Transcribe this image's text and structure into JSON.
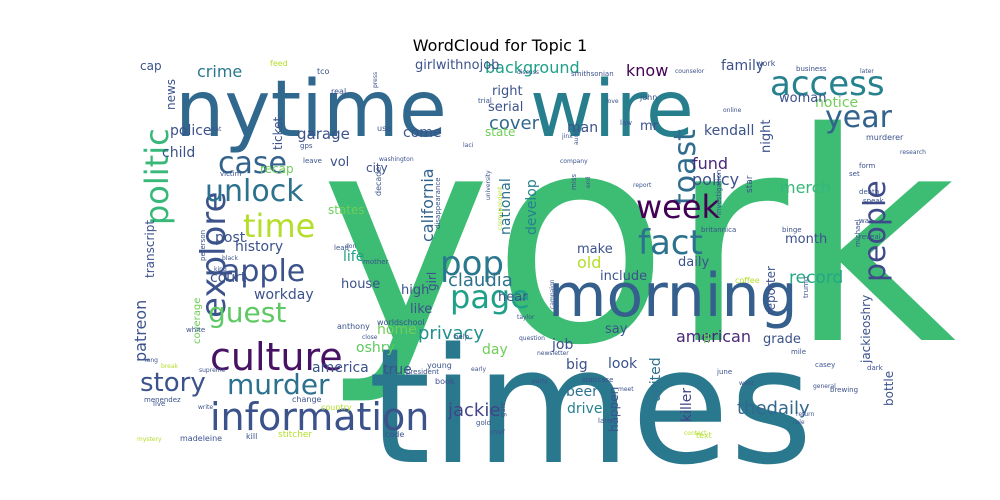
{
  "chart_data": {
    "type": "wordcloud",
    "title": "WordCloud for Topic 1",
    "palette": "viridis",
    "words": [
      {
        "text": "york",
        "weight": 100,
        "color": "#3dbc74"
      },
      {
        "text": "times",
        "weight": 92,
        "color": "#2a788e"
      },
      {
        "text": "nytime",
        "weight": 62,
        "color": "#31688e"
      },
      {
        "text": "wire",
        "weight": 62,
        "color": "#277f8e"
      },
      {
        "text": "morning",
        "weight": 52,
        "color": "#355f8d"
      },
      {
        "text": "access",
        "weight": 33,
        "color": "#26828e"
      },
      {
        "text": "culture",
        "weight": 34,
        "color": "#471164"
      },
      {
        "text": "information",
        "weight": 34,
        "color": "#3b528b"
      },
      {
        "text": "page",
        "weight": 30,
        "color": "#1fa088"
      },
      {
        "text": "politic",
        "weight": 30,
        "color": "#37b878"
      },
      {
        "text": "explore",
        "weight": 30,
        "color": "#3b528b"
      },
      {
        "text": "fact",
        "weight": 30,
        "color": "#2c728e"
      },
      {
        "text": "pop",
        "weight": 28,
        "color": "#2a788e"
      },
      {
        "text": "people",
        "weight": 28,
        "color": "#3e4a89"
      },
      {
        "text": "year",
        "weight": 28,
        "color": "#33638d"
      },
      {
        "text": "apple",
        "weight": 28,
        "color": "#3b528b"
      },
      {
        "text": "toast",
        "weight": 28,
        "color": "#2f6c8e"
      },
      {
        "text": "week",
        "weight": 27,
        "color": "#440154"
      },
      {
        "text": "case",
        "weight": 28,
        "color": "#33638d"
      },
      {
        "text": "unlock",
        "weight": 27,
        "color": "#2c728e"
      },
      {
        "text": "guest",
        "weight": 28,
        "color": "#5ec962"
      },
      {
        "text": "story",
        "weight": 26,
        "color": "#3b528b"
      },
      {
        "text": "murder",
        "weight": 26,
        "color": "#2c728e"
      },
      {
        "text": "time",
        "weight": 26,
        "color": "#b5de2b"
      },
      {
        "text": "claudia",
        "weight": 15,
        "color": "#2c728e"
      },
      {
        "text": "privacy",
        "weight": 15,
        "color": "#21918c"
      },
      {
        "text": "thedaily",
        "weight": 15,
        "color": "#31688e"
      },
      {
        "text": "jackie",
        "weight": 15,
        "color": "#414487"
      },
      {
        "text": "background",
        "weight": 13,
        "color": "#1fa088"
      },
      {
        "text": "record",
        "weight": 13,
        "color": "#22a884"
      },
      {
        "text": "american",
        "weight": 13,
        "color": "#482878"
      },
      {
        "text": "merch",
        "weight": 13,
        "color": "#35b779"
      },
      {
        "text": "policy",
        "weight": 13,
        "color": "#3b528b"
      },
      {
        "text": "crime",
        "weight": 13,
        "color": "#2a788e"
      },
      {
        "text": "patreon",
        "weight": 13,
        "color": "#3b528b"
      },
      {
        "text": "know",
        "weight": 13,
        "color": "#440154"
      },
      {
        "text": "cover",
        "weight": 13,
        "color": "#31688e"
      },
      {
        "text": "notice",
        "weight": 12,
        "color": "#6ece58"
      },
      {
        "text": "garage",
        "weight": 12,
        "color": "#3b528b"
      },
      {
        "text": "fund",
        "weight": 12,
        "color": "#482878"
      },
      {
        "text": "california",
        "weight": 12,
        "color": "#33638d"
      },
      {
        "text": "national",
        "weight": 11,
        "color": "#2c728e"
      },
      {
        "text": "develop",
        "weight": 11,
        "color": "#26828e"
      },
      {
        "text": "house",
        "weight": 11,
        "color": "#3b528b"
      },
      {
        "text": "job",
        "weight": 11,
        "color": "#3b528b"
      },
      {
        "text": "look",
        "weight": 11,
        "color": "#3b528b"
      },
      {
        "text": "drive",
        "weight": 11,
        "color": "#26828e"
      },
      {
        "text": "beer",
        "weight": 11,
        "color": "#2c728e"
      },
      {
        "text": "big",
        "weight": 11,
        "color": "#3b528b"
      },
      {
        "text": "killer",
        "weight": 10,
        "color": "#414487"
      },
      {
        "text": "united",
        "weight": 10,
        "color": "#2c728e"
      },
      {
        "text": "home",
        "weight": 11,
        "color": "#6ece58"
      },
      {
        "text": "oshry",
        "weight": 11,
        "color": "#5ec962"
      },
      {
        "text": "life",
        "weight": 11,
        "color": "#1fa088"
      },
      {
        "text": "history",
        "weight": 11,
        "color": "#3b528b"
      },
      {
        "text": "post",
        "weight": 11,
        "color": "#3b528b"
      },
      {
        "text": "police",
        "weight": 11,
        "color": "#3b528b"
      },
      {
        "text": "child",
        "weight": 11,
        "color": "#3b528b"
      },
      {
        "text": "court",
        "weight": 11,
        "color": "#3b528b"
      },
      {
        "text": "workday",
        "weight": 11,
        "color": "#3b528b"
      },
      {
        "text": "true",
        "weight": 11,
        "color": "#3b528b"
      },
      {
        "text": "america",
        "weight": 11,
        "color": "#3b528b"
      },
      {
        "text": "day",
        "weight": 10,
        "color": "#6ece58"
      },
      {
        "text": "high",
        "weight": 10,
        "color": "#3b528b"
      },
      {
        "text": "like",
        "weight": 10,
        "color": "#3b528b"
      },
      {
        "text": "hear",
        "weight": 10,
        "color": "#3b528b"
      },
      {
        "text": "old",
        "weight": 10,
        "color": "#b5de2b"
      },
      {
        "text": "make",
        "weight": 10,
        "color": "#3b528b"
      },
      {
        "text": "include",
        "weight": 10,
        "color": "#3b528b"
      },
      {
        "text": "say",
        "weight": 10,
        "color": "#3b528b"
      },
      {
        "text": "daily",
        "weight": 10,
        "color": "#3b528b"
      },
      {
        "text": "month",
        "weight": 10,
        "color": "#3b528b"
      },
      {
        "text": "grade",
        "weight": 10,
        "color": "#3b528b"
      },
      {
        "text": "woman",
        "weight": 10,
        "color": "#3b528b"
      },
      {
        "text": "family",
        "weight": 10,
        "color": "#3b528b"
      },
      {
        "text": "right",
        "weight": 10,
        "color": "#3b528b"
      },
      {
        "text": "serial",
        "weight": 10,
        "color": "#3b528b"
      },
      {
        "text": "come",
        "weight": 10,
        "color": "#3b528b"
      },
      {
        "text": "man",
        "weight": 10,
        "color": "#3b528b"
      },
      {
        "text": "mr",
        "weight": 10,
        "color": "#3b528b"
      },
      {
        "text": "kendall",
        "weight": 10,
        "color": "#3b528b"
      },
      {
        "text": "state",
        "weight": 10,
        "color": "#6ece58"
      },
      {
        "text": "city",
        "weight": 10,
        "color": "#3b528b"
      },
      {
        "text": "vol",
        "weight": 10,
        "color": "#3b528b"
      },
      {
        "text": "recap",
        "weight": 10,
        "color": "#6ece58"
      },
      {
        "text": "states",
        "weight": 10,
        "color": "#6ece58"
      },
      {
        "text": "ticket",
        "weight": 10,
        "color": "#3b528b"
      },
      {
        "text": "transcript",
        "weight": 10,
        "color": "#3b528b"
      },
      {
        "text": "news",
        "weight": 10,
        "color": "#3b528b"
      },
      {
        "text": "cap",
        "weight": 10,
        "color": "#3b528b"
      },
      {
        "text": "girlwithnojob",
        "weight": 10,
        "color": "#3b528b"
      },
      {
        "text": "night",
        "weight": 10,
        "color": "#3b528b"
      },
      {
        "text": "reporter",
        "weight": 10,
        "color": "#3b528b"
      },
      {
        "text": "jackieoshry",
        "weight": 10,
        "color": "#3b528b"
      },
      {
        "text": "bottle",
        "weight": 10,
        "color": "#3b528b"
      },
      {
        "text": "happen",
        "weight": 10,
        "color": "#3b528b"
      },
      {
        "text": "coverage",
        "weight": 9,
        "color": "#6ece58"
      },
      {
        "text": "ll",
        "weight": 10,
        "color": "#6ece58"
      },
      {
        "text": "girl",
        "weight": 10,
        "color": "#3b528b"
      },
      {
        "text": "coffee",
        "weight": 6,
        "color": "#b5de2b"
      },
      {
        "text": "text",
        "weight": 6,
        "color": "#b5de2b"
      },
      {
        "text": "stitcher",
        "weight": 6,
        "color": "#b5de2b"
      },
      {
        "text": "feed",
        "weight": 5,
        "color": "#b5de2b"
      },
      {
        "text": "tco",
        "weight": 5,
        "color": "#3b528b"
      },
      {
        "text": "real",
        "weight": 5,
        "color": "#3b528b"
      },
      {
        "text": "trial",
        "weight": 5,
        "color": "#3b528b"
      },
      {
        "text": "press",
        "weight": 4,
        "color": "#3b528b"
      },
      {
        "text": "smithsonian",
        "weight": 5,
        "color": "#3b528b"
      },
      {
        "text": "counselor",
        "weight": 4,
        "color": "#3b528b"
      },
      {
        "text": "business",
        "weight": 5,
        "color": "#3b528b"
      },
      {
        "text": "later",
        "weight": 4,
        "color": "#3b528b"
      },
      {
        "text": "work",
        "weight": 5,
        "color": "#3b528b"
      },
      {
        "text": "discuss",
        "weight": 4,
        "color": "#3b528b"
      },
      {
        "text": "john",
        "weight": 5,
        "color": "#3b528b"
      },
      {
        "text": "love",
        "weight": 4,
        "color": "#3b528b"
      },
      {
        "text": "online",
        "weight": 4,
        "color": "#3b528b"
      },
      {
        "text": "law",
        "weight": 5,
        "color": "#3b528b"
      },
      {
        "text": "murderer",
        "weight": 5,
        "color": "#3b528b"
      },
      {
        "text": "jinx",
        "weight": 4,
        "color": "#3b528b"
      },
      {
        "text": "audio",
        "weight": 4,
        "color": "#3b528b"
      },
      {
        "text": "research",
        "weight": 4,
        "color": "#3b528b"
      },
      {
        "text": "use",
        "weight": 5,
        "color": "#3b528b"
      },
      {
        "text": "gps",
        "weight": 5,
        "color": "#3b528b"
      },
      {
        "text": "leave",
        "weight": 5,
        "color": "#3b528b"
      },
      {
        "text": "washington",
        "weight": 4,
        "color": "#3b528b"
      },
      {
        "text": "laci",
        "weight": 4,
        "color": "#3b528b"
      },
      {
        "text": "cat",
        "weight": 4,
        "color": "#3b528b"
      },
      {
        "text": "victim",
        "weight": 5,
        "color": "#3b528b"
      },
      {
        "text": "set",
        "weight": 5,
        "color": "#3b528b"
      },
      {
        "text": "form",
        "weight": 5,
        "color": "#3b528b"
      },
      {
        "text": "report",
        "weight": 5,
        "color": "#3b528b"
      },
      {
        "text": "death",
        "weight": 5,
        "color": "#3b528b"
      },
      {
        "text": "speak",
        "weight": 5,
        "color": "#3b528b"
      },
      {
        "text": "war",
        "weight": 5,
        "color": "#3b528b"
      },
      {
        "text": "reveal",
        "weight": 5,
        "color": "#3b528b"
      },
      {
        "text": "miss",
        "weight": 5,
        "color": "#3b528b"
      },
      {
        "text": "investigation",
        "weight": 5,
        "color": "#3b528b"
      },
      {
        "text": "disappearance",
        "weight": 5,
        "color": "#3b528b"
      },
      {
        "text": "university",
        "weight": 5,
        "color": "#3b528b"
      },
      {
        "text": "correspondent",
        "weight": 4,
        "color": "#b5de2b"
      },
      {
        "text": "britannica",
        "weight": 4,
        "color": "#3b528b"
      },
      {
        "text": "black",
        "weight": 5,
        "color": "#3b528b"
      },
      {
        "text": "peterson",
        "weight": 4,
        "color": "#3b528b"
      },
      {
        "text": "king",
        "weight": 5,
        "color": "#3b528b"
      },
      {
        "text": "lead",
        "weight": 4,
        "color": "#3b528b"
      },
      {
        "text": "don",
        "weight": 5,
        "color": "#3b528b"
      },
      {
        "text": "mother",
        "weight": 4,
        "color": "#3b528b"
      },
      {
        "text": "decade",
        "weight": 5,
        "color": "#3b528b"
      },
      {
        "text": "binge",
        "weight": 5,
        "color": "#3b528b"
      },
      {
        "text": "michael",
        "weight": 5,
        "color": "#3b528b"
      },
      {
        "text": "trump",
        "weight": 5,
        "color": "#3b528b"
      },
      {
        "text": "mile",
        "weight": 5,
        "color": "#3b528b"
      },
      {
        "text": "casey",
        "weight": 5,
        "color": "#3b528b"
      },
      {
        "text": "dark",
        "weight": 5,
        "color": "#3b528b"
      },
      {
        "text": "general",
        "weight": 5,
        "color": "#3b528b"
      },
      {
        "text": "brewing",
        "weight": 4,
        "color": "#3b528b"
      },
      {
        "text": "return",
        "weight": 5,
        "color": "#3b528b"
      },
      {
        "text": "rule",
        "weight": 4,
        "color": "#3b528b"
      },
      {
        "text": "june",
        "weight": 4,
        "color": "#3b528b"
      },
      {
        "text": "want",
        "weight": 5,
        "color": "#3b528b"
      },
      {
        "text": "contact",
        "weight": 4,
        "color": "#b5de2b"
      },
      {
        "text": "late",
        "weight": 4,
        "color": "#3b528b"
      },
      {
        "text": "chief",
        "weight": 5,
        "color": "#3b528b"
      },
      {
        "text": "gold",
        "weight": 4,
        "color": "#3b528b"
      },
      {
        "text": "gale",
        "weight": 5,
        "color": "#3b528b"
      },
      {
        "text": "staircase",
        "weight": 5,
        "color": "#3b528b"
      },
      {
        "text": "book",
        "weight": 5,
        "color": "#3b528b"
      },
      {
        "text": "young",
        "weight": 5,
        "color": "#3b528b"
      },
      {
        "text": "president",
        "weight": 5,
        "color": "#3b528b"
      },
      {
        "text": "party",
        "weight": 5,
        "color": "#3b528b"
      },
      {
        "text": "meet",
        "weight": 4,
        "color": "#3b528b"
      },
      {
        "text": "early",
        "weight": 4,
        "color": "#3b528b"
      },
      {
        "text": "newsletter",
        "weight": 4,
        "color": "#3b528b"
      },
      {
        "text": "question",
        "weight": 4,
        "color": "#3b528b"
      },
      {
        "text": "help",
        "weight": 5,
        "color": "#3b528b"
      },
      {
        "text": "taylor",
        "weight": 5,
        "color": "#3b528b"
      },
      {
        "text": "campaign",
        "weight": 4,
        "color": "#3b528b"
      },
      {
        "text": "worldschool",
        "weight": 5,
        "color": "#3b528b"
      },
      {
        "text": "anthony",
        "weight": 5,
        "color": "#3b528b"
      },
      {
        "text": "close",
        "weight": 5,
        "color": "#3b528b"
      },
      {
        "text": "white",
        "weight": 4,
        "color": "#3b528b"
      },
      {
        "text": "long",
        "weight": 5,
        "color": "#3b528b"
      },
      {
        "text": "break",
        "weight": 4,
        "color": "#b5de2b"
      },
      {
        "text": "supreme",
        "weight": 4,
        "color": "#3b528b"
      },
      {
        "text": "menendez",
        "weight": 4,
        "color": "#3b528b"
      },
      {
        "text": "live",
        "weight": 5,
        "color": "#3b528b"
      },
      {
        "text": "write",
        "weight": 5,
        "color": "#3b528b"
      },
      {
        "text": "change",
        "weight": 4,
        "color": "#3b528b"
      },
      {
        "text": "country",
        "weight": 5,
        "color": "#b5de2b"
      },
      {
        "text": "mystery",
        "weight": 5,
        "color": "#b5de2b"
      },
      {
        "text": "madeleine",
        "weight": 4,
        "color": "#3b528b"
      },
      {
        "text": "kill",
        "weight": 5,
        "color": "#3b528b"
      },
      {
        "text": "code",
        "weight": 5,
        "color": "#3b528b"
      },
      {
        "text": "company",
        "weight": 5,
        "color": "#3b528b"
      },
      {
        "text": "end",
        "weight": 4,
        "color": "#3b528b"
      },
      {
        "text": "star",
        "weight": 4,
        "color": "#3b528b"
      },
      {
        "text": "oshrysee",
        "weight": 5,
        "color": "#b5de2b"
      }
    ]
  }
}
